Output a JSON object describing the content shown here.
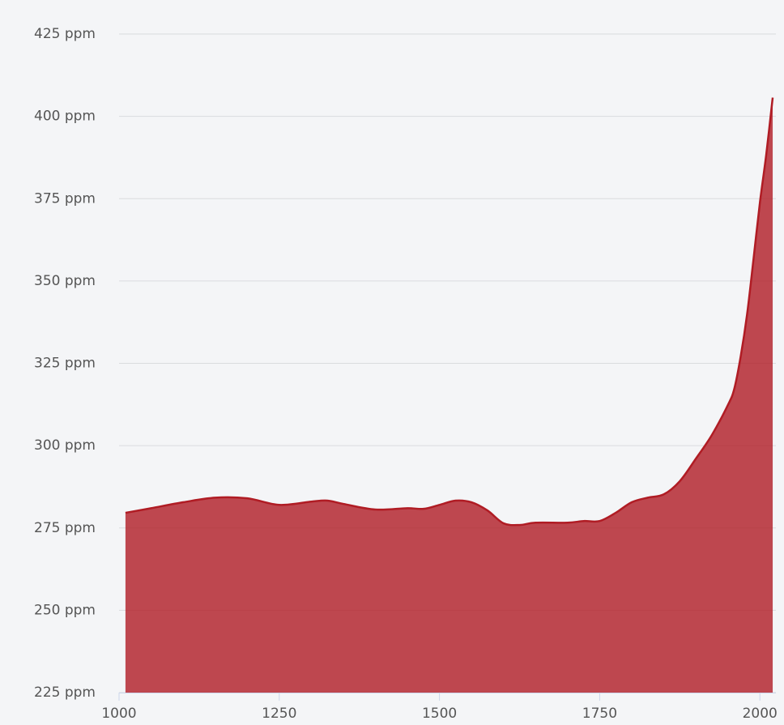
{
  "chart_data": {
    "type": "area",
    "x": [
      1010,
      1050,
      1100,
      1150,
      1200,
      1250,
      1300,
      1325,
      1350,
      1400,
      1450,
      1475,
      1500,
      1525,
      1550,
      1575,
      1600,
      1625,
      1650,
      1700,
      1725,
      1750,
      1775,
      1800,
      1825,
      1850,
      1875,
      1900,
      1925,
      1950,
      1960,
      1970,
      1980,
      1990,
      2000,
      2010,
      2020
    ],
    "series": [
      {
        "color": "#b01c24",
        "values": [
          279.6,
          281,
          282.8,
          284.2,
          284,
          282,
          283,
          283.3,
          282.3,
          280.6,
          281,
          280.8,
          282,
          283.3,
          282.8,
          280.3,
          276.4,
          275.9,
          276.6,
          276.6,
          277.1,
          277.1,
          279.6,
          282.8,
          284.2,
          285.2,
          289.2,
          296,
          303.2,
          312.3,
          317.2,
          327,
          339.8,
          356.5,
          373.7,
          388.5,
          405.7
        ]
      }
    ],
    "xlim": [
      1000,
      2025
    ],
    "xticks": [
      1000,
      1250,
      1500,
      1750,
      2000
    ],
    "ylim": [
      225,
      425
    ],
    "yticks": [
      {
        "value": 225,
        "label": "225 ppm"
      },
      {
        "value": 250,
        "label": "250 ppm"
      },
      {
        "value": 275,
        "label": "275 ppm"
      },
      {
        "value": 300,
        "label": "300 ppm"
      },
      {
        "value": 325,
        "label": "325 ppm"
      },
      {
        "value": 350,
        "label": "350 ppm"
      },
      {
        "value": 375,
        "label": "375 ppm"
      },
      {
        "value": 400,
        "label": "400 ppm"
      },
      {
        "value": 425,
        "label": "425 ppm"
      }
    ],
    "grid": true
  }
}
